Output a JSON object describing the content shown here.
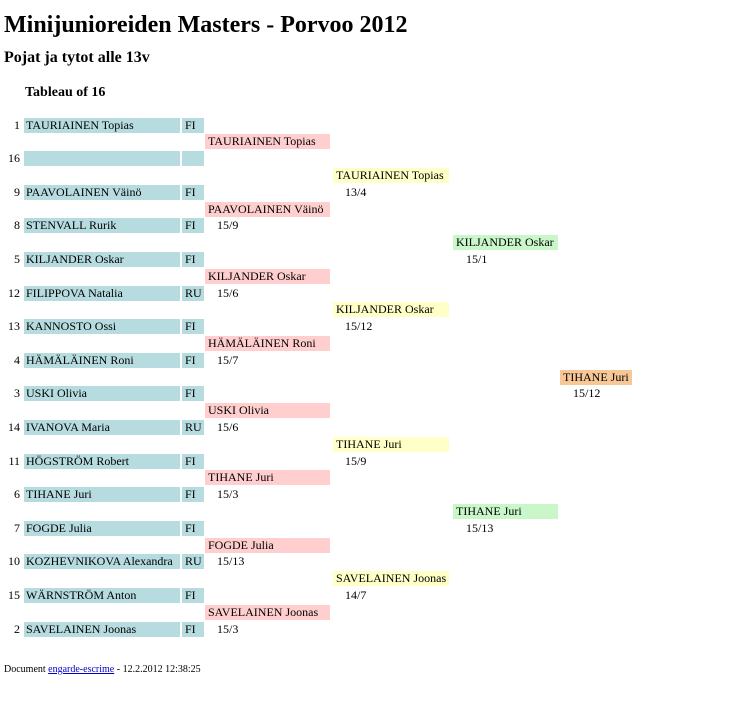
{
  "title": "Minijunioreiden Masters - Porvoo 2012",
  "subtitle": "Pojat ja tytot alle 13v",
  "tableau_title": "Tableau of 16",
  "entries": [
    {
      "seed": "1",
      "name": "TAURIAINEN Topias",
      "nation": "FI"
    },
    {
      "seed": "16",
      "name": "",
      "nation": ""
    },
    {
      "seed": "9",
      "name": "PAAVOLAINEN Väinö",
      "nation": "FI"
    },
    {
      "seed": "8",
      "name": "STENVALL Rurik",
      "nation": "FI"
    },
    {
      "seed": "5",
      "name": "KILJANDER Oskar",
      "nation": "FI"
    },
    {
      "seed": "12",
      "name": "FILIPPOVA Natalia",
      "nation": "RU"
    },
    {
      "seed": "13",
      "name": "KANNOSTO Ossi",
      "nation": "FI"
    },
    {
      "seed": "4",
      "name": "HÄMÄLÄINEN Roni",
      "nation": "FI"
    },
    {
      "seed": "3",
      "name": "USKI Olivia",
      "nation": "FI"
    },
    {
      "seed": "14",
      "name": "IVANOVA Maria",
      "nation": "RU"
    },
    {
      "seed": "11",
      "name": "HÖGSTRÖM Robert",
      "nation": "FI"
    },
    {
      "seed": "6",
      "name": "TIHANE Juri",
      "nation": "FI"
    },
    {
      "seed": "7",
      "name": "FOGDE Julia",
      "nation": "FI"
    },
    {
      "seed": "10",
      "name": "KOZHEVNIKOVA Alexandra",
      "nation": "RU"
    },
    {
      "seed": "15",
      "name": "WÄRNSTRÖM Anton",
      "nation": "FI"
    },
    {
      "seed": "2",
      "name": "SAVELAINEN Joonas",
      "nation": "FI"
    }
  ],
  "round_of_8": [
    {
      "winner": "TAURIAINEN Topias",
      "score": ""
    },
    {
      "winner": "PAAVOLAINEN Väinö",
      "score": "15/9"
    },
    {
      "winner": "KILJANDER Oskar",
      "score": "15/6"
    },
    {
      "winner": "HÄMÄLÄINEN Roni",
      "score": "15/7"
    },
    {
      "winner": "USKI Olivia",
      "score": "15/6"
    },
    {
      "winner": "TIHANE Juri",
      "score": "15/3"
    },
    {
      "winner": "FOGDE Julia",
      "score": "15/13"
    },
    {
      "winner": "SAVELAINEN Joonas",
      "score": "15/3"
    }
  ],
  "semifinals_in": [
    {
      "winner": "TAURIAINEN Topias",
      "score": "13/4"
    },
    {
      "winner": "KILJANDER Oskar",
      "score": "15/12"
    },
    {
      "winner": "TIHANE Juri",
      "score": "15/9"
    },
    {
      "winner": "SAVELAINEN Joonas",
      "score": "14/7"
    }
  ],
  "finalists": [
    {
      "winner": "KILJANDER Oskar",
      "score": "15/1"
    },
    {
      "winner": "TIHANE Juri",
      "score": "15/13"
    }
  ],
  "champion": {
    "winner": "TIHANE Juri",
    "score": "15/12"
  },
  "footer": {
    "prefix": "Document ",
    "link": "engarde-escrime",
    "suffix": " - 12.2.2012 12:38:25"
  },
  "colors": {
    "entry_bg": "#b7dce0",
    "round_of_8_bg": "#ffcfcf",
    "semifinal_bg": "#ffffc8",
    "final_bg": "#c9f7c9",
    "champion_bg": "#f7c896"
  }
}
